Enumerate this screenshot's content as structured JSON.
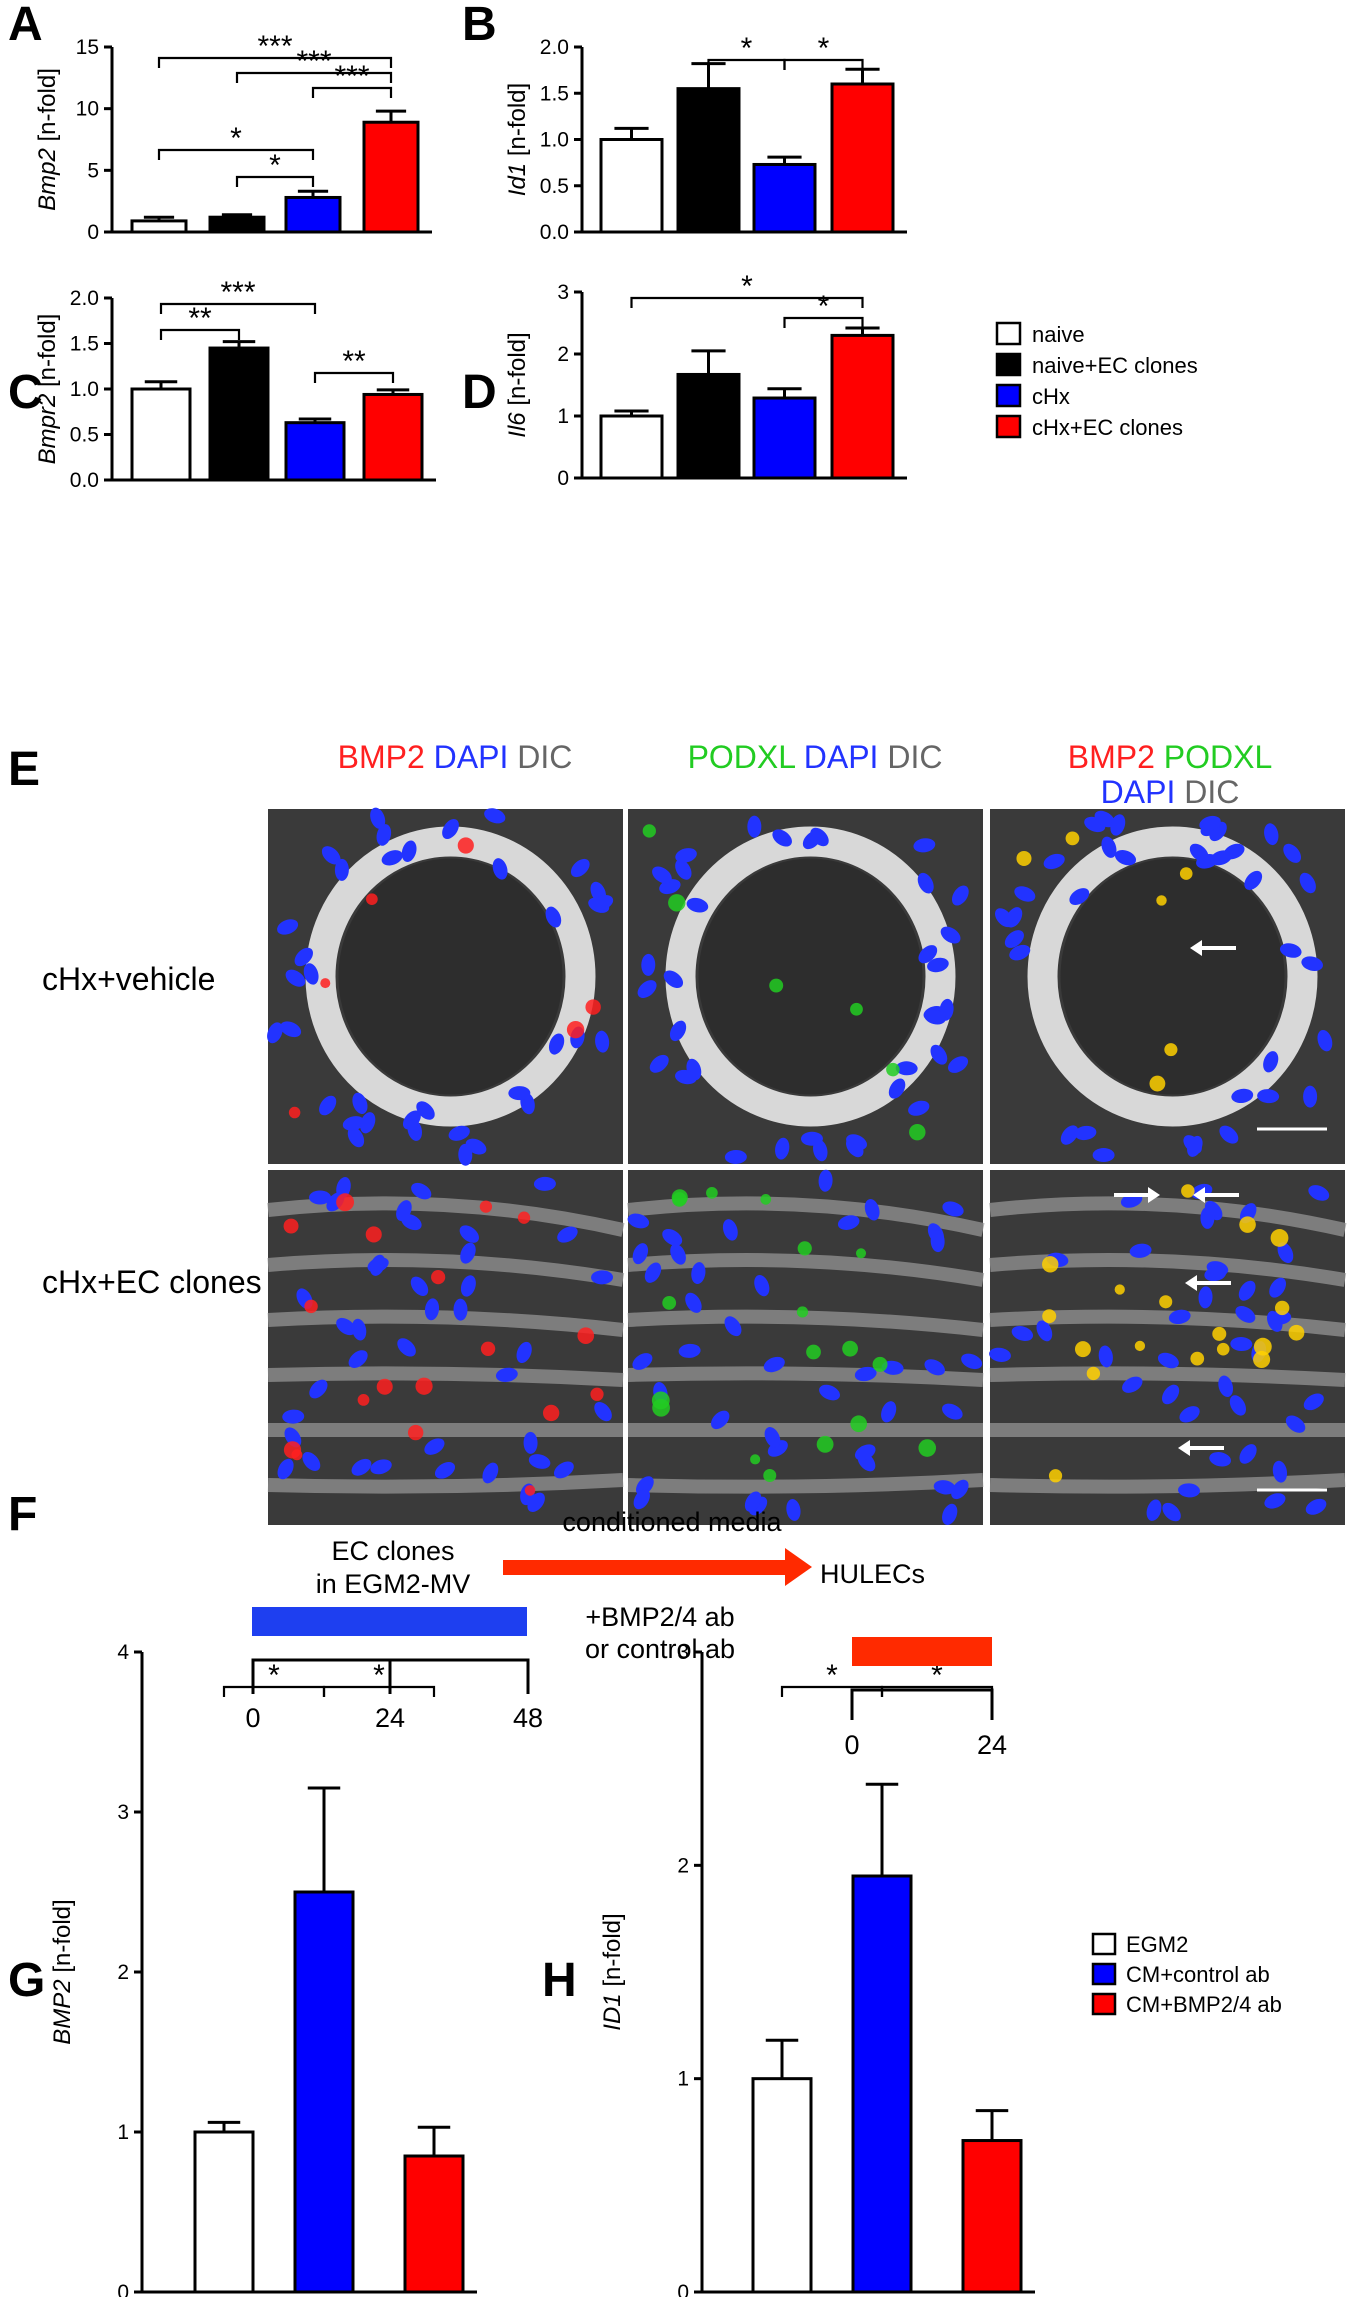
{
  "colors": {
    "naive": "#ffffff",
    "naive_ec": "#000000",
    "chx": "#0000ff",
    "chx_ec": "#ff0000",
    "egm2": "#ffffff",
    "cm_control": "#0000ff",
    "cm_bmp": "#ff0000",
    "timeline_blue": "#1e3ff0",
    "timeline_red": "#ff2a00",
    "stain_red": "#ff2020",
    "stain_blue": "#2233ff",
    "stain_green": "#22cc22",
    "stain_gray": "#666666"
  },
  "legend_top": {
    "items": [
      "naive",
      "naive+EC clones",
      "cHx",
      "cHx+EC clones"
    ]
  },
  "legend_bottom": {
    "items": [
      "EGM2",
      "CM+control ab",
      "CM+BMP2/4 ab"
    ]
  },
  "chart_data": [
    {
      "panel": "A",
      "type": "bar",
      "ylabel_gene": "Bmp2",
      "ylabel_unit": " [n-fold]",
      "ylim": [
        0,
        15
      ],
      "yticks": [
        "0",
        "5",
        "10",
        "15"
      ],
      "categories": [
        "naive",
        "naive+EC clones",
        "cHx",
        "cHx+EC clones"
      ],
      "values": [
        0.9,
        1.2,
        2.8,
        8.9
      ],
      "errors": [
        0.3,
        0.2,
        0.5,
        0.9
      ],
      "significance": [
        {
          "from": 0,
          "to": 3,
          "label": "***"
        },
        {
          "from": 1,
          "to": 3,
          "label": "***"
        },
        {
          "from": 2,
          "to": 3,
          "label": "***"
        },
        {
          "from": 0,
          "to": 2,
          "label": "*"
        },
        {
          "from": 1,
          "to": 2,
          "label": "*"
        }
      ]
    },
    {
      "panel": "B",
      "type": "bar",
      "ylabel_gene": "Id1",
      "ylabel_unit": " [n-fold]",
      "ylim": [
        0,
        2.0
      ],
      "yticks": [
        "0.0",
        "0.5",
        "1.0",
        "1.5",
        "2.0"
      ],
      "categories": [
        "naive",
        "naive+EC clones",
        "cHx",
        "cHx+EC clones"
      ],
      "values": [
        1.0,
        1.55,
        0.73,
        1.6
      ],
      "errors": [
        0.12,
        0.27,
        0.08,
        0.16
      ],
      "significance": [
        {
          "from": 1,
          "to": 2,
          "label": "*"
        },
        {
          "from": 2,
          "to": 3,
          "label": "*"
        }
      ]
    },
    {
      "panel": "C",
      "type": "bar",
      "ylabel_gene": "Bmpr2",
      "ylabel_unit": " [n-fold]",
      "ylim": [
        0,
        2.0
      ],
      "yticks": [
        "0.0",
        "0.5",
        "1.0",
        "1.5",
        "2.0"
      ],
      "categories": [
        "naive",
        "naive+EC clones",
        "cHx",
        "cHx+EC clones"
      ],
      "values": [
        1.0,
        1.45,
        0.63,
        0.94
      ],
      "errors": [
        0.08,
        0.07,
        0.04,
        0.05
      ],
      "significance": [
        {
          "from": 0,
          "to": 2,
          "label": "***"
        },
        {
          "from": 0,
          "to": 1,
          "label": "**"
        },
        {
          "from": 2,
          "to": 3,
          "label": "**"
        }
      ]
    },
    {
      "panel": "D",
      "type": "bar",
      "ylabel_gene": "Il6",
      "ylabel_unit": " [n-fold]",
      "ylim": [
        0,
        3
      ],
      "yticks": [
        "0",
        "1",
        "2",
        "3"
      ],
      "categories": [
        "naive",
        "naive+EC clones",
        "cHx",
        "cHx+EC clones"
      ],
      "values": [
        1.0,
        1.67,
        1.29,
        2.3
      ],
      "errors": [
        0.08,
        0.38,
        0.15,
        0.12
      ],
      "significance": [
        {
          "from": 0,
          "to": 3,
          "label": "*"
        },
        {
          "from": 2,
          "to": 3,
          "label": "*"
        }
      ]
    },
    {
      "panel": "G",
      "type": "bar",
      "ylabel_gene": "BMP2",
      "ylabel_unit": " [n-fold]",
      "ylim": [
        0,
        4
      ],
      "yticks": [
        "0",
        "1",
        "2",
        "3",
        "4"
      ],
      "categories": [
        "EGM2",
        "CM+control ab",
        "CM+BMP2/4 ab"
      ],
      "values": [
        1.0,
        2.5,
        0.85
      ],
      "errors": [
        0.06,
        0.65,
        0.18
      ],
      "significance": [
        {
          "from": 0,
          "to": 1,
          "label": "*"
        },
        {
          "from": 1,
          "to": 2,
          "label": "*"
        }
      ]
    },
    {
      "panel": "H",
      "type": "bar",
      "ylabel_gene": "ID1",
      "ylabel_unit": " [n-fold]",
      "ylim": [
        0,
        3
      ],
      "yticks": [
        "0",
        "1",
        "2",
        "3"
      ],
      "categories": [
        "EGM2",
        "CM+control ab",
        "CM+BMP2/4 ab"
      ],
      "values": [
        1.0,
        1.95,
        0.71
      ],
      "errors": [
        0.18,
        0.43,
        0.14
      ],
      "significance": [
        {
          "from": 0,
          "to": 1,
          "label": "*"
        },
        {
          "from": 1,
          "to": 2,
          "label": "*"
        }
      ]
    }
  ],
  "panel_e": {
    "letter": "E",
    "col1": {
      "a": "BMP2",
      "b": "DAPI",
      "c": "DIC"
    },
    "col2": {
      "a": "PODXL",
      "b": "DAPI",
      "c": "DIC"
    },
    "col3": {
      "a": "BMP2",
      "b": "PODXL",
      "c": "DAPI",
      "d": "DIC"
    },
    "rows": [
      "cHx+vehicle",
      "cHx+EC clones"
    ]
  },
  "panel_f": {
    "letter": "F",
    "ec_clones_line1": "EC clones",
    "ec_clones_line2": "in EGM2-MV",
    "arrow_label": "conditioned media",
    "target": "HULECs",
    "treatment_line1": "+BMP2/4 ab",
    "treatment_line2": "or control ab",
    "left_ticks": [
      "0",
      "24",
      "48"
    ],
    "right_ticks": [
      "0",
      "24"
    ]
  }
}
